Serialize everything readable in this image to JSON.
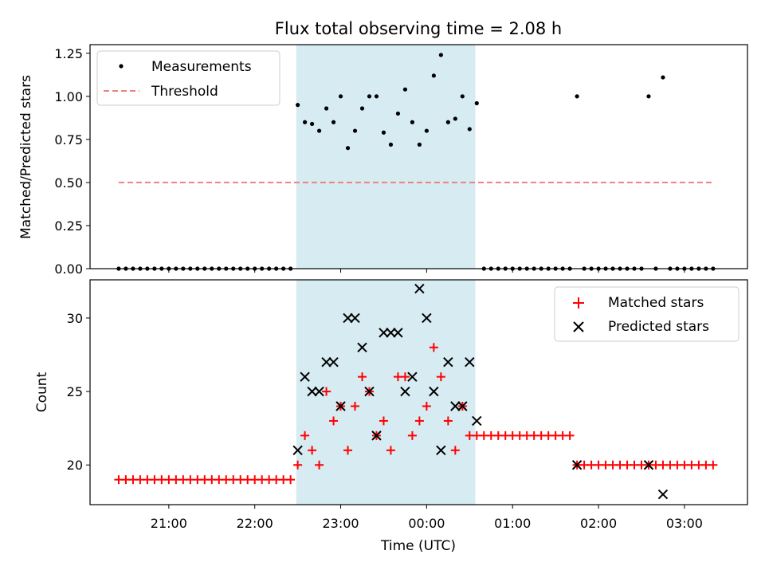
{
  "title": "Flux total observing time = 2.08 h",
  "chart_data": [
    {
      "type": "scatter",
      "panel": "top",
      "ylabel": "Matched/Predicted stars",
      "ylim": [
        0,
        1.3
      ],
      "yticks": [
        0.0,
        0.25,
        0.5,
        0.75,
        1.0,
        1.25
      ],
      "ytick_labels": [
        "0.00",
        "0.25",
        "0.50",
        "0.75",
        "1.00",
        "1.25"
      ],
      "shaded_interval": [
        "22:29",
        "00:34"
      ],
      "shade_color": "#add8e6",
      "grid": false,
      "legend_position": "upper left",
      "series": [
        {
          "name": "Measurements",
          "marker": "dot",
          "color": "#000000",
          "points": [
            [
              "20:25",
              0
            ],
            [
              "20:30",
              0
            ],
            [
              "20:35",
              0
            ],
            [
              "20:40",
              0
            ],
            [
              "20:45",
              0
            ],
            [
              "20:50",
              0
            ],
            [
              "20:55",
              0
            ],
            [
              "21:00",
              0
            ],
            [
              "21:05",
              0
            ],
            [
              "21:10",
              0
            ],
            [
              "21:15",
              0
            ],
            [
              "21:20",
              0
            ],
            [
              "21:25",
              0
            ],
            [
              "21:30",
              0
            ],
            [
              "21:35",
              0
            ],
            [
              "21:40",
              0
            ],
            [
              "21:45",
              0
            ],
            [
              "21:50",
              0
            ],
            [
              "21:55",
              0
            ],
            [
              "22:00",
              0
            ],
            [
              "22:05",
              0
            ],
            [
              "22:10",
              0
            ],
            [
              "22:15",
              0
            ],
            [
              "22:20",
              0
            ],
            [
              "22:25",
              0
            ],
            [
              "22:30",
              0.95
            ],
            [
              "22:35",
              0.85
            ],
            [
              "22:40",
              0.84
            ],
            [
              "22:45",
              0.8
            ],
            [
              "22:50",
              0.93
            ],
            [
              "22:55",
              0.85
            ],
            [
              "23:00",
              1.0
            ],
            [
              "23:05",
              0.7
            ],
            [
              "23:10",
              0.8
            ],
            [
              "23:15",
              0.93
            ],
            [
              "23:20",
              1.0
            ],
            [
              "23:25",
              1.0
            ],
            [
              "23:30",
              0.79
            ],
            [
              "23:35",
              0.72
            ],
            [
              "23:40",
              0.9
            ],
            [
              "23:45",
              1.04
            ],
            [
              "23:50",
              0.85
            ],
            [
              "23:55",
              0.72
            ],
            [
              "00:00",
              0.8
            ],
            [
              "00:05",
              1.12
            ],
            [
              "00:10",
              1.24
            ],
            [
              "00:15",
              0.85
            ],
            [
              "00:20",
              0.87
            ],
            [
              "00:25",
              1.0
            ],
            [
              "00:30",
              0.81
            ],
            [
              "00:35",
              0.96
            ],
            [
              "00:40",
              0
            ],
            [
              "00:45",
              0
            ],
            [
              "00:50",
              0
            ],
            [
              "00:55",
              0
            ],
            [
              "01:00",
              0
            ],
            [
              "01:05",
              0
            ],
            [
              "01:10",
              0
            ],
            [
              "01:15",
              0
            ],
            [
              "01:20",
              0
            ],
            [
              "01:25",
              0
            ],
            [
              "01:30",
              0
            ],
            [
              "01:35",
              0
            ],
            [
              "01:40",
              0
            ],
            [
              "01:45",
              1.0
            ],
            [
              "01:50",
              0
            ],
            [
              "01:55",
              0
            ],
            [
              "02:00",
              0
            ],
            [
              "02:05",
              0
            ],
            [
              "02:10",
              0
            ],
            [
              "02:15",
              0
            ],
            [
              "02:20",
              0
            ],
            [
              "02:25",
              0
            ],
            [
              "02:30",
              0
            ],
            [
              "02:35",
              1.0
            ],
            [
              "02:40",
              0
            ],
            [
              "02:45",
              1.11
            ],
            [
              "02:50",
              0
            ],
            [
              "02:55",
              0
            ],
            [
              "03:00",
              0
            ],
            [
              "03:05",
              0
            ],
            [
              "03:10",
              0
            ],
            [
              "03:15",
              0
            ],
            [
              "03:20",
              0
            ]
          ]
        },
        {
          "name": "Threshold",
          "marker": "dashed-line",
          "color": "#f08080",
          "points": [
            [
              "20:25",
              0.5
            ],
            [
              "03:20",
              0.5
            ]
          ]
        }
      ]
    },
    {
      "type": "scatter",
      "panel": "bottom",
      "xlabel": "Time (UTC)",
      "ylabel": "Count",
      "ylim": [
        17.3,
        32.6
      ],
      "yticks": [
        20,
        25,
        30
      ],
      "ytick_labels": [
        "20",
        "25",
        "30"
      ],
      "xticks": [
        "21:00",
        "22:00",
        "23:00",
        "00:00",
        "01:00",
        "02:00",
        "03:00"
      ],
      "shaded_interval": [
        "22:29",
        "00:34"
      ],
      "shade_color": "#add8e6",
      "grid": false,
      "legend_position": "upper right",
      "series": [
        {
          "name": "Matched stars",
          "marker": "plus",
          "color": "#ff0000",
          "points": [
            [
              "20:25",
              19
            ],
            [
              "20:30",
              19
            ],
            [
              "20:35",
              19
            ],
            [
              "20:40",
              19
            ],
            [
              "20:45",
              19
            ],
            [
              "20:50",
              19
            ],
            [
              "20:55",
              19
            ],
            [
              "21:00",
              19
            ],
            [
              "21:05",
              19
            ],
            [
              "21:10",
              19
            ],
            [
              "21:15",
              19
            ],
            [
              "21:20",
              19
            ],
            [
              "21:25",
              19
            ],
            [
              "21:30",
              19
            ],
            [
              "21:35",
              19
            ],
            [
              "21:40",
              19
            ],
            [
              "21:45",
              19
            ],
            [
              "21:50",
              19
            ],
            [
              "21:55",
              19
            ],
            [
              "22:00",
              19
            ],
            [
              "22:05",
              19
            ],
            [
              "22:10",
              19
            ],
            [
              "22:15",
              19
            ],
            [
              "22:20",
              19
            ],
            [
              "22:25",
              19
            ],
            [
              "22:30",
              20
            ],
            [
              "22:35",
              22
            ],
            [
              "22:40",
              21
            ],
            [
              "22:45",
              20
            ],
            [
              "22:50",
              25
            ],
            [
              "22:55",
              23
            ],
            [
              "23:00",
              24
            ],
            [
              "23:05",
              21
            ],
            [
              "23:10",
              24
            ],
            [
              "23:15",
              26
            ],
            [
              "23:20",
              25
            ],
            [
              "23:25",
              22
            ],
            [
              "23:30",
              23
            ],
            [
              "23:35",
              21
            ],
            [
              "23:40",
              26
            ],
            [
              "23:45",
              26
            ],
            [
              "23:50",
              22
            ],
            [
              "23:55",
              23
            ],
            [
              "00:00",
              24
            ],
            [
              "00:05",
              28
            ],
            [
              "00:10",
              26
            ],
            [
              "00:15",
              23
            ],
            [
              "00:20",
              21
            ],
            [
              "00:25",
              24
            ],
            [
              "00:30",
              22
            ],
            [
              "00:35",
              22
            ],
            [
              "00:40",
              22
            ],
            [
              "00:45",
              22
            ],
            [
              "00:50",
              22
            ],
            [
              "00:55",
              22
            ],
            [
              "01:00",
              22
            ],
            [
              "01:05",
              22
            ],
            [
              "01:10",
              22
            ],
            [
              "01:15",
              22
            ],
            [
              "01:20",
              22
            ],
            [
              "01:25",
              22
            ],
            [
              "01:30",
              22
            ],
            [
              "01:35",
              22
            ],
            [
              "01:40",
              22
            ],
            [
              "01:45",
              20
            ],
            [
              "01:50",
              20
            ],
            [
              "01:55",
              20
            ],
            [
              "02:00",
              20
            ],
            [
              "02:05",
              20
            ],
            [
              "02:10",
              20
            ],
            [
              "02:15",
              20
            ],
            [
              "02:20",
              20
            ],
            [
              "02:25",
              20
            ],
            [
              "02:30",
              20
            ],
            [
              "02:35",
              20
            ],
            [
              "02:40",
              20
            ],
            [
              "02:45",
              20
            ],
            [
              "02:50",
              20
            ],
            [
              "02:55",
              20
            ],
            [
              "03:00",
              20
            ],
            [
              "03:05",
              20
            ],
            [
              "03:10",
              20
            ],
            [
              "03:15",
              20
            ],
            [
              "03:20",
              20
            ]
          ]
        },
        {
          "name": "Predicted stars",
          "marker": "x",
          "color": "#000000",
          "points": [
            [
              "22:30",
              21
            ],
            [
              "22:35",
              26
            ],
            [
              "22:40",
              25
            ],
            [
              "22:45",
              25
            ],
            [
              "22:50",
              27
            ],
            [
              "22:55",
              27
            ],
            [
              "23:00",
              24
            ],
            [
              "23:05",
              30
            ],
            [
              "23:10",
              30
            ],
            [
              "23:15",
              28
            ],
            [
              "23:20",
              25
            ],
            [
              "23:25",
              22
            ],
            [
              "23:30",
              29
            ],
            [
              "23:35",
              29
            ],
            [
              "23:40",
              29
            ],
            [
              "23:45",
              25
            ],
            [
              "23:50",
              26
            ],
            [
              "23:55",
              32
            ],
            [
              "00:00",
              30
            ],
            [
              "00:05",
              25
            ],
            [
              "00:10",
              21
            ],
            [
              "00:15",
              27
            ],
            [
              "00:20",
              24
            ],
            [
              "00:25",
              24
            ],
            [
              "00:30",
              27
            ],
            [
              "00:35",
              23
            ],
            [
              "01:45",
              20
            ],
            [
              "02:35",
              20
            ],
            [
              "02:45",
              18
            ]
          ]
        }
      ]
    }
  ]
}
